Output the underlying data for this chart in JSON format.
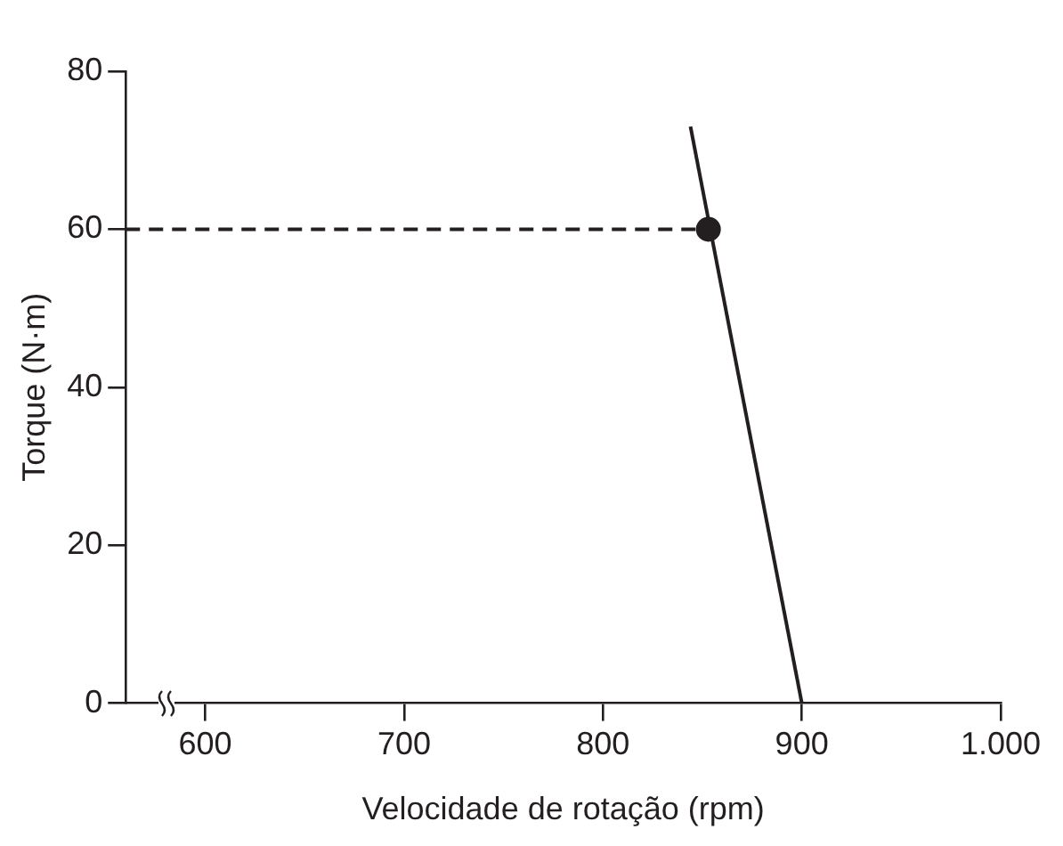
{
  "chart_data": {
    "type": "line",
    "xlabel": "Velocidade de rotação (rpm)",
    "ylabel": "Torque (N·m)",
    "xlim": [
      560,
      1000
    ],
    "xticks": [
      600,
      700,
      800,
      900,
      {
        "value": 1000,
        "label": "1.000"
      }
    ],
    "ylim": [
      0,
      80
    ],
    "yticks": [
      0,
      20,
      40,
      60,
      80
    ],
    "grid": false,
    "legend": false,
    "series": [
      {
        "type": "line",
        "color": "#231f20",
        "x": [
          844,
          900
        ],
        "values": [
          73,
          0
        ],
        "line_style": "solid",
        "marker": "none"
      },
      {
        "type": "line",
        "color": "#231f20",
        "x": [
          560,
          853
        ],
        "values": [
          60,
          60
        ],
        "line_style": "dashed",
        "marker": "none"
      },
      {
        "type": "scatter",
        "color": "#231f20",
        "x": [
          853
        ],
        "values": [
          60
        ],
        "marker": "circle"
      }
    ]
  }
}
